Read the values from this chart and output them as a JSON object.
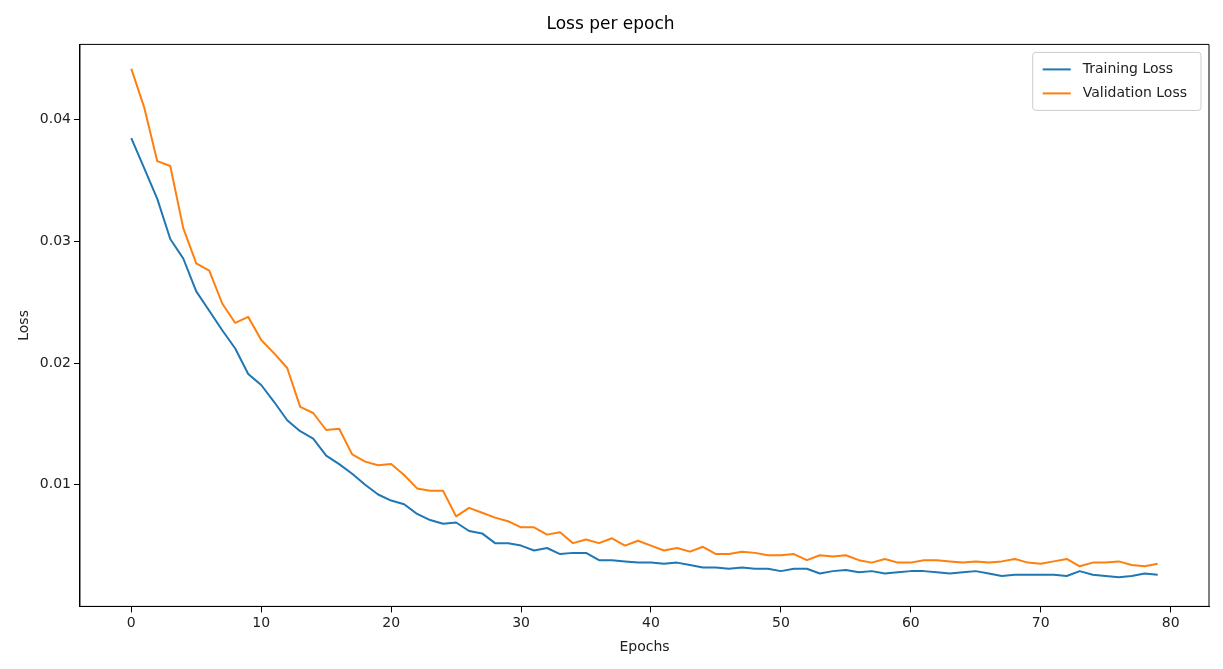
{
  "chart_data": {
    "type": "line",
    "title": "Loss per epoch",
    "xlabel": "Epochs",
    "ylabel": "Loss",
    "x": [
      0,
      1,
      2,
      3,
      4,
      5,
      6,
      7,
      8,
      9,
      10,
      11,
      12,
      13,
      14,
      15,
      16,
      17,
      18,
      19,
      20,
      21,
      22,
      23,
      24,
      25,
      26,
      27,
      28,
      29,
      30,
      31,
      32,
      33,
      34,
      35,
      36,
      37,
      38,
      39,
      40,
      41,
      42,
      43,
      44,
      45,
      46,
      47,
      48,
      49,
      50,
      51,
      52,
      53,
      54,
      55,
      56,
      57,
      58,
      59,
      60,
      61,
      62,
      63,
      64,
      65,
      66,
      67,
      68,
      69,
      70,
      71,
      72,
      73,
      74,
      75,
      76,
      77,
      78,
      79
    ],
    "series": [
      {
        "name": "Training Loss",
        "color": "#1f77b4",
        "values": [
          0.0385,
          0.036,
          0.0335,
          0.0302,
          0.0286,
          0.0259,
          0.0243,
          0.0227,
          0.0212,
          0.0191,
          0.0182,
          0.0168,
          0.0153,
          0.0144,
          0.0138,
          0.0124,
          0.0117,
          0.0109,
          0.01,
          0.0092,
          0.0087,
          0.0084,
          0.0076,
          0.0071,
          0.0068,
          0.0069,
          0.0062,
          0.006,
          0.0052,
          0.0052,
          0.005,
          0.0046,
          0.0048,
          0.0043,
          0.0044,
          0.0044,
          0.0038,
          0.0038,
          0.0037,
          0.0036,
          0.0036,
          0.0035,
          0.0036,
          0.0034,
          0.0032,
          0.0032,
          0.0031,
          0.0032,
          0.0031,
          0.0031,
          0.0029,
          0.0031,
          0.0031,
          0.0027,
          0.0029,
          0.003,
          0.0028,
          0.0029,
          0.0027,
          0.0028,
          0.0029,
          0.0029,
          0.0028,
          0.0027,
          0.0028,
          0.0029,
          0.0027,
          0.0025,
          0.0026,
          0.0026,
          0.0026,
          0.0026,
          0.0025,
          0.0029,
          0.0026,
          0.0025,
          0.0024,
          0.0025,
          0.0027,
          0.0026
        ]
      },
      {
        "name": "Validation Loss",
        "color": "#ff7f0e",
        "values": [
          0.0442,
          0.041,
          0.0366,
          0.0362,
          0.0311,
          0.0282,
          0.0276,
          0.0249,
          0.0233,
          0.0238,
          0.0219,
          0.0208,
          0.0196,
          0.0164,
          0.0159,
          0.0145,
          0.0146,
          0.0125,
          0.0119,
          0.0116,
          0.0117,
          0.0108,
          0.0097,
          0.0095,
          0.0095,
          0.0074,
          0.0081,
          0.0077,
          0.0073,
          0.007,
          0.0065,
          0.0065,
          0.0059,
          0.0061,
          0.0052,
          0.0055,
          0.0052,
          0.0056,
          0.005,
          0.0054,
          0.005,
          0.0046,
          0.0048,
          0.0045,
          0.0049,
          0.0043,
          0.0043,
          0.0045,
          0.0044,
          0.0042,
          0.0042,
          0.0043,
          0.0038,
          0.0042,
          0.0041,
          0.0042,
          0.0038,
          0.0036,
          0.0039,
          0.0036,
          0.0036,
          0.0038,
          0.0038,
          0.0037,
          0.0036,
          0.0037,
          0.0036,
          0.0037,
          0.0039,
          0.0036,
          0.0035,
          0.0037,
          0.0039,
          0.0033,
          0.0036,
          0.0036,
          0.0037,
          0.0034,
          0.0033,
          0.0035
        ]
      }
    ],
    "xlim": [
      -3.95,
      82.95
    ],
    "xticks": [
      0,
      10,
      20,
      30,
      40,
      50,
      60,
      70,
      80
    ],
    "ylim": [
      0,
      0.0462
    ],
    "yticks": [
      0.01,
      0.02,
      0.03,
      0.04
    ],
    "grid": false,
    "legend": "top right",
    "marker": "none",
    "line_style": "solid"
  }
}
